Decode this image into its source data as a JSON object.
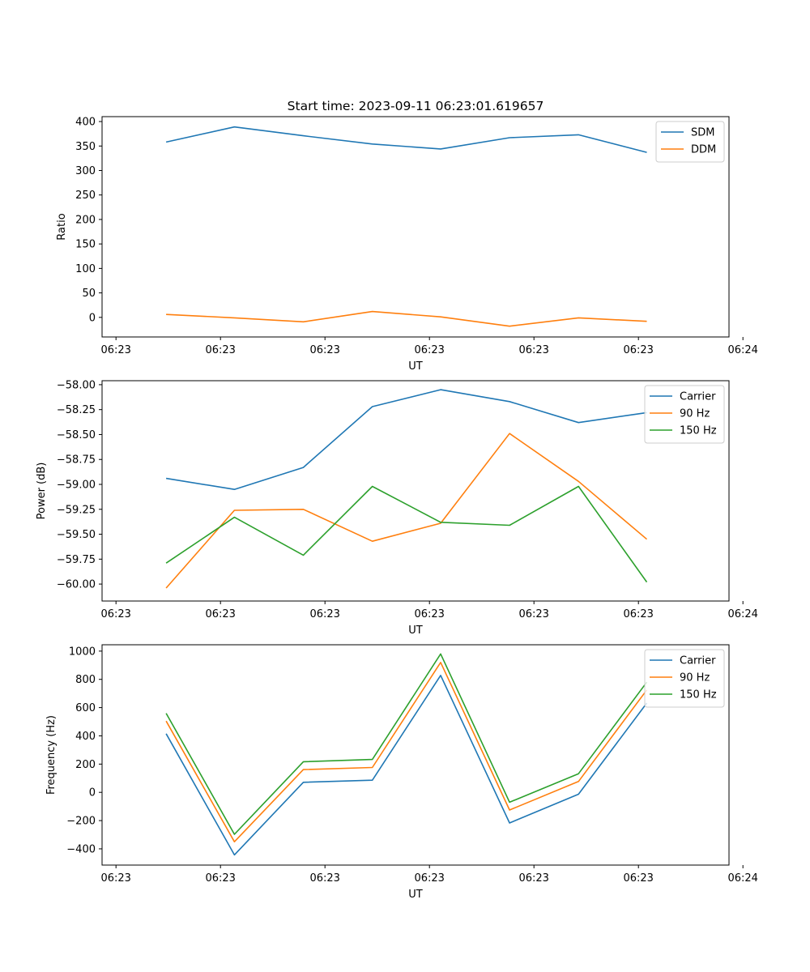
{
  "chart_data": [
    {
      "type": "line",
      "title": "Start time: 2023-09-11 06:23:01.619657",
      "xlabel": "UT",
      "ylabel": "Ratio",
      "grid": false,
      "legend_position": "top-right",
      "ylim": [
        -40,
        410
      ],
      "xlim": [
        -0.2,
        8.8
      ],
      "xtick_positions": [
        0,
        1.5,
        3,
        4.5,
        6,
        7.5,
        9
      ],
      "xtick_labels": [
        "06:23",
        "06:23",
        "06:23",
        "06:23",
        "06:23",
        "06:23",
        "06:24"
      ],
      "yticks": [
        0,
        50,
        100,
        150,
        200,
        250,
        300,
        350,
        400
      ],
      "ytick_labels": [
        "0",
        "50",
        "100",
        "150",
        "200",
        "250",
        "300",
        "350",
        "400"
      ],
      "x": [
        0.72,
        1.7,
        2.69,
        3.68,
        4.66,
        5.65,
        6.64,
        7.62
      ],
      "series": [
        {
          "name": "SDM",
          "color": "#1f77b4",
          "values": [
            358,
            389,
            371,
            354,
            344,
            367,
            373,
            337
          ]
        },
        {
          "name": "DDM",
          "color": "#ff7f0e",
          "values": [
            6,
            -1,
            -9,
            12,
            1,
            -18,
            -1,
            -8
          ]
        }
      ]
    },
    {
      "type": "line",
      "title": "",
      "xlabel": "UT",
      "ylabel": "Power (dB)",
      "grid": false,
      "legend_position": "top-right",
      "ylim": [
        -60.17,
        -57.96
      ],
      "xlim": [
        -0.2,
        8.8
      ],
      "xtick_positions": [
        0,
        1.5,
        3,
        4.5,
        6,
        7.5,
        9
      ],
      "xtick_labels": [
        "06:23",
        "06:23",
        "06:23",
        "06:23",
        "06:23",
        "06:23",
        "06:24"
      ],
      "yticks": [
        -60.0,
        -59.75,
        -59.5,
        -59.25,
        -59.0,
        -58.75,
        -58.5,
        -58.25,
        -58.0
      ],
      "ytick_labels": [
        "−60.00",
        "−59.75",
        "−59.50",
        "−59.25",
        "−59.00",
        "−58.75",
        "−58.50",
        "−58.25",
        "−58.00"
      ],
      "x": [
        0.72,
        1.7,
        2.69,
        3.68,
        4.66,
        5.65,
        6.64,
        7.62
      ],
      "series": [
        {
          "name": "Carrier",
          "color": "#1f77b4",
          "values": [
            -58.94,
            -59.05,
            -58.83,
            -58.22,
            -58.05,
            -58.17,
            -58.38,
            -58.28
          ]
        },
        {
          "name": "90 Hz",
          "color": "#ff7f0e",
          "values": [
            -60.04,
            -59.26,
            -59.25,
            -59.57,
            -59.39,
            -58.49,
            -58.97,
            -59.55
          ]
        },
        {
          "name": "150 Hz",
          "color": "#2ca02c",
          "values": [
            -59.79,
            -59.33,
            -59.71,
            -59.02,
            -59.38,
            -59.41,
            -59.02,
            -59.98
          ]
        }
      ]
    },
    {
      "type": "line",
      "title": "",
      "xlabel": "UT",
      "ylabel": "Frequency (Hz)",
      "grid": false,
      "legend_position": "top-right",
      "ylim": [
        -515,
        1045
      ],
      "xlim": [
        -0.2,
        8.8
      ],
      "xtick_positions": [
        0,
        1.5,
        3,
        4.5,
        6,
        7.5,
        9
      ],
      "xtick_labels": [
        "06:23",
        "06:23",
        "06:23",
        "06:23",
        "06:23",
        "06:23",
        "06:24"
      ],
      "yticks": [
        -400,
        -200,
        0,
        200,
        400,
        600,
        800,
        1000
      ],
      "ytick_labels": [
        "−400",
        "−200",
        "0",
        "200",
        "400",
        "600",
        "800",
        "1000"
      ],
      "x": [
        0.72,
        1.7,
        2.69,
        3.68,
        4.66,
        5.65,
        6.64,
        7.62
      ],
      "series": [
        {
          "name": "Carrier",
          "color": "#1f77b4",
          "values": [
            415,
            -443,
            71,
            86,
            828,
            -217,
            -13,
            632
          ]
        },
        {
          "name": "90 Hz",
          "color": "#ff7f0e",
          "values": [
            505,
            -350,
            161,
            176,
            920,
            -125,
            77,
            725
          ]
        },
        {
          "name": "150 Hz",
          "color": "#2ca02c",
          "values": [
            560,
            -297,
            217,
            233,
            980,
            -70,
            132,
            780
          ]
        }
      ]
    }
  ]
}
